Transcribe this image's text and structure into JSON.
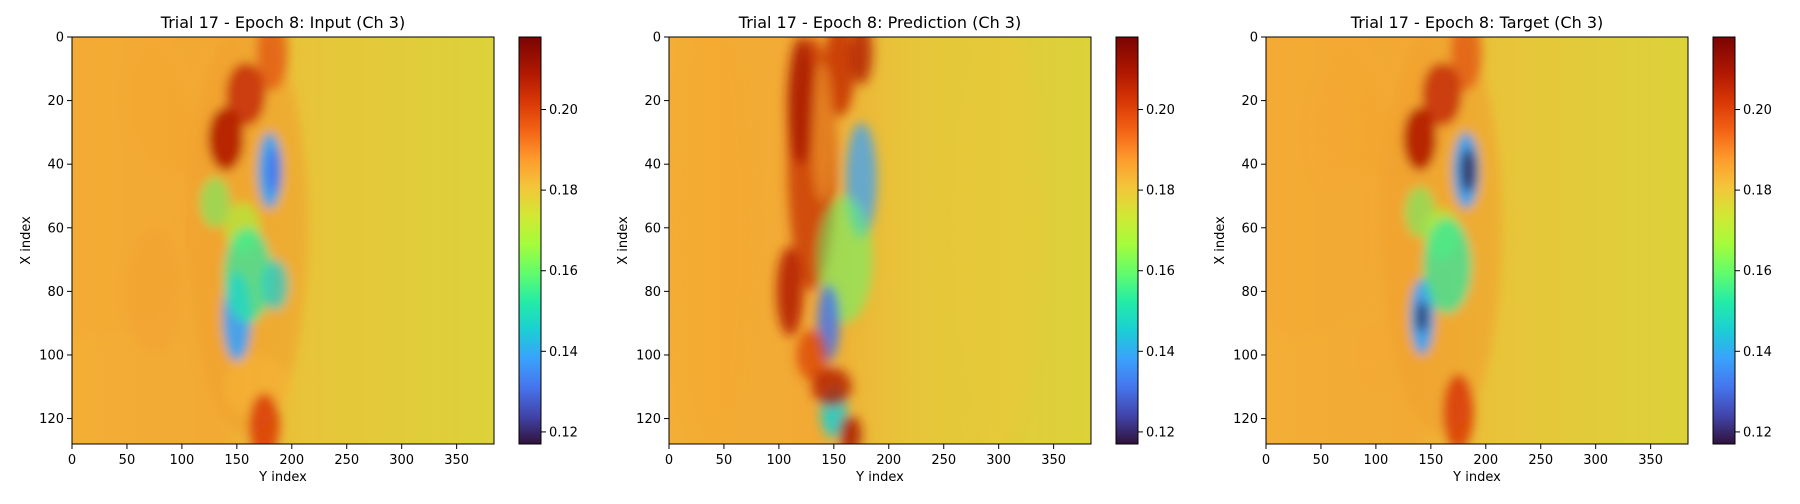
{
  "chart_data": [
    {
      "type": "heatmap",
      "title": "Trial 17 - Epoch 8: Input (Ch 3)",
      "xlabel": "Y index",
      "ylabel": "X index",
      "xlim": [
        0,
        384
      ],
      "ylim": [
        128,
        0
      ],
      "x_ticks": [
        "0",
        "50",
        "100",
        "150",
        "200",
        "250",
        "300",
        "350"
      ],
      "y_ticks": [
        "0",
        "20",
        "40",
        "60",
        "80",
        "100",
        "120"
      ],
      "colormap": "turbo",
      "colorbar": {
        "range": [
          0.117,
          0.218
        ],
        "ticks": [
          "0.12",
          "0.14",
          "0.16",
          "0.18",
          "0.20"
        ]
      }
    },
    {
      "type": "heatmap",
      "title": "Trial 17 - Epoch 8: Prediction (Ch 3)",
      "xlabel": "Y index",
      "ylabel": "X index",
      "xlim": [
        0,
        384
      ],
      "ylim": [
        128,
        0
      ],
      "x_ticks": [
        "0",
        "50",
        "100",
        "150",
        "200",
        "250",
        "300",
        "350"
      ],
      "y_ticks": [
        "0",
        "20",
        "40",
        "60",
        "80",
        "100",
        "120"
      ],
      "colormap": "turbo",
      "colorbar": {
        "range": [
          0.117,
          0.218
        ],
        "ticks": [
          "0.12",
          "0.14",
          "0.16",
          "0.18",
          "0.20"
        ]
      }
    },
    {
      "type": "heatmap",
      "title": "Trial 17 - Epoch 8: Target (Ch 3)",
      "xlabel": "Y index",
      "ylabel": "X index",
      "xlim": [
        0,
        384
      ],
      "ylim": [
        128,
        0
      ],
      "x_ticks": [
        "0",
        "50",
        "100",
        "150",
        "200",
        "250",
        "300",
        "350"
      ],
      "y_ticks": [
        "0",
        "20",
        "40",
        "60",
        "80",
        "100",
        "120"
      ],
      "colormap": "turbo",
      "colorbar": {
        "range": [
          0.117,
          0.218
        ],
        "ticks": [
          "0.12",
          "0.14",
          "0.16",
          "0.18",
          "0.20"
        ]
      }
    }
  ]
}
